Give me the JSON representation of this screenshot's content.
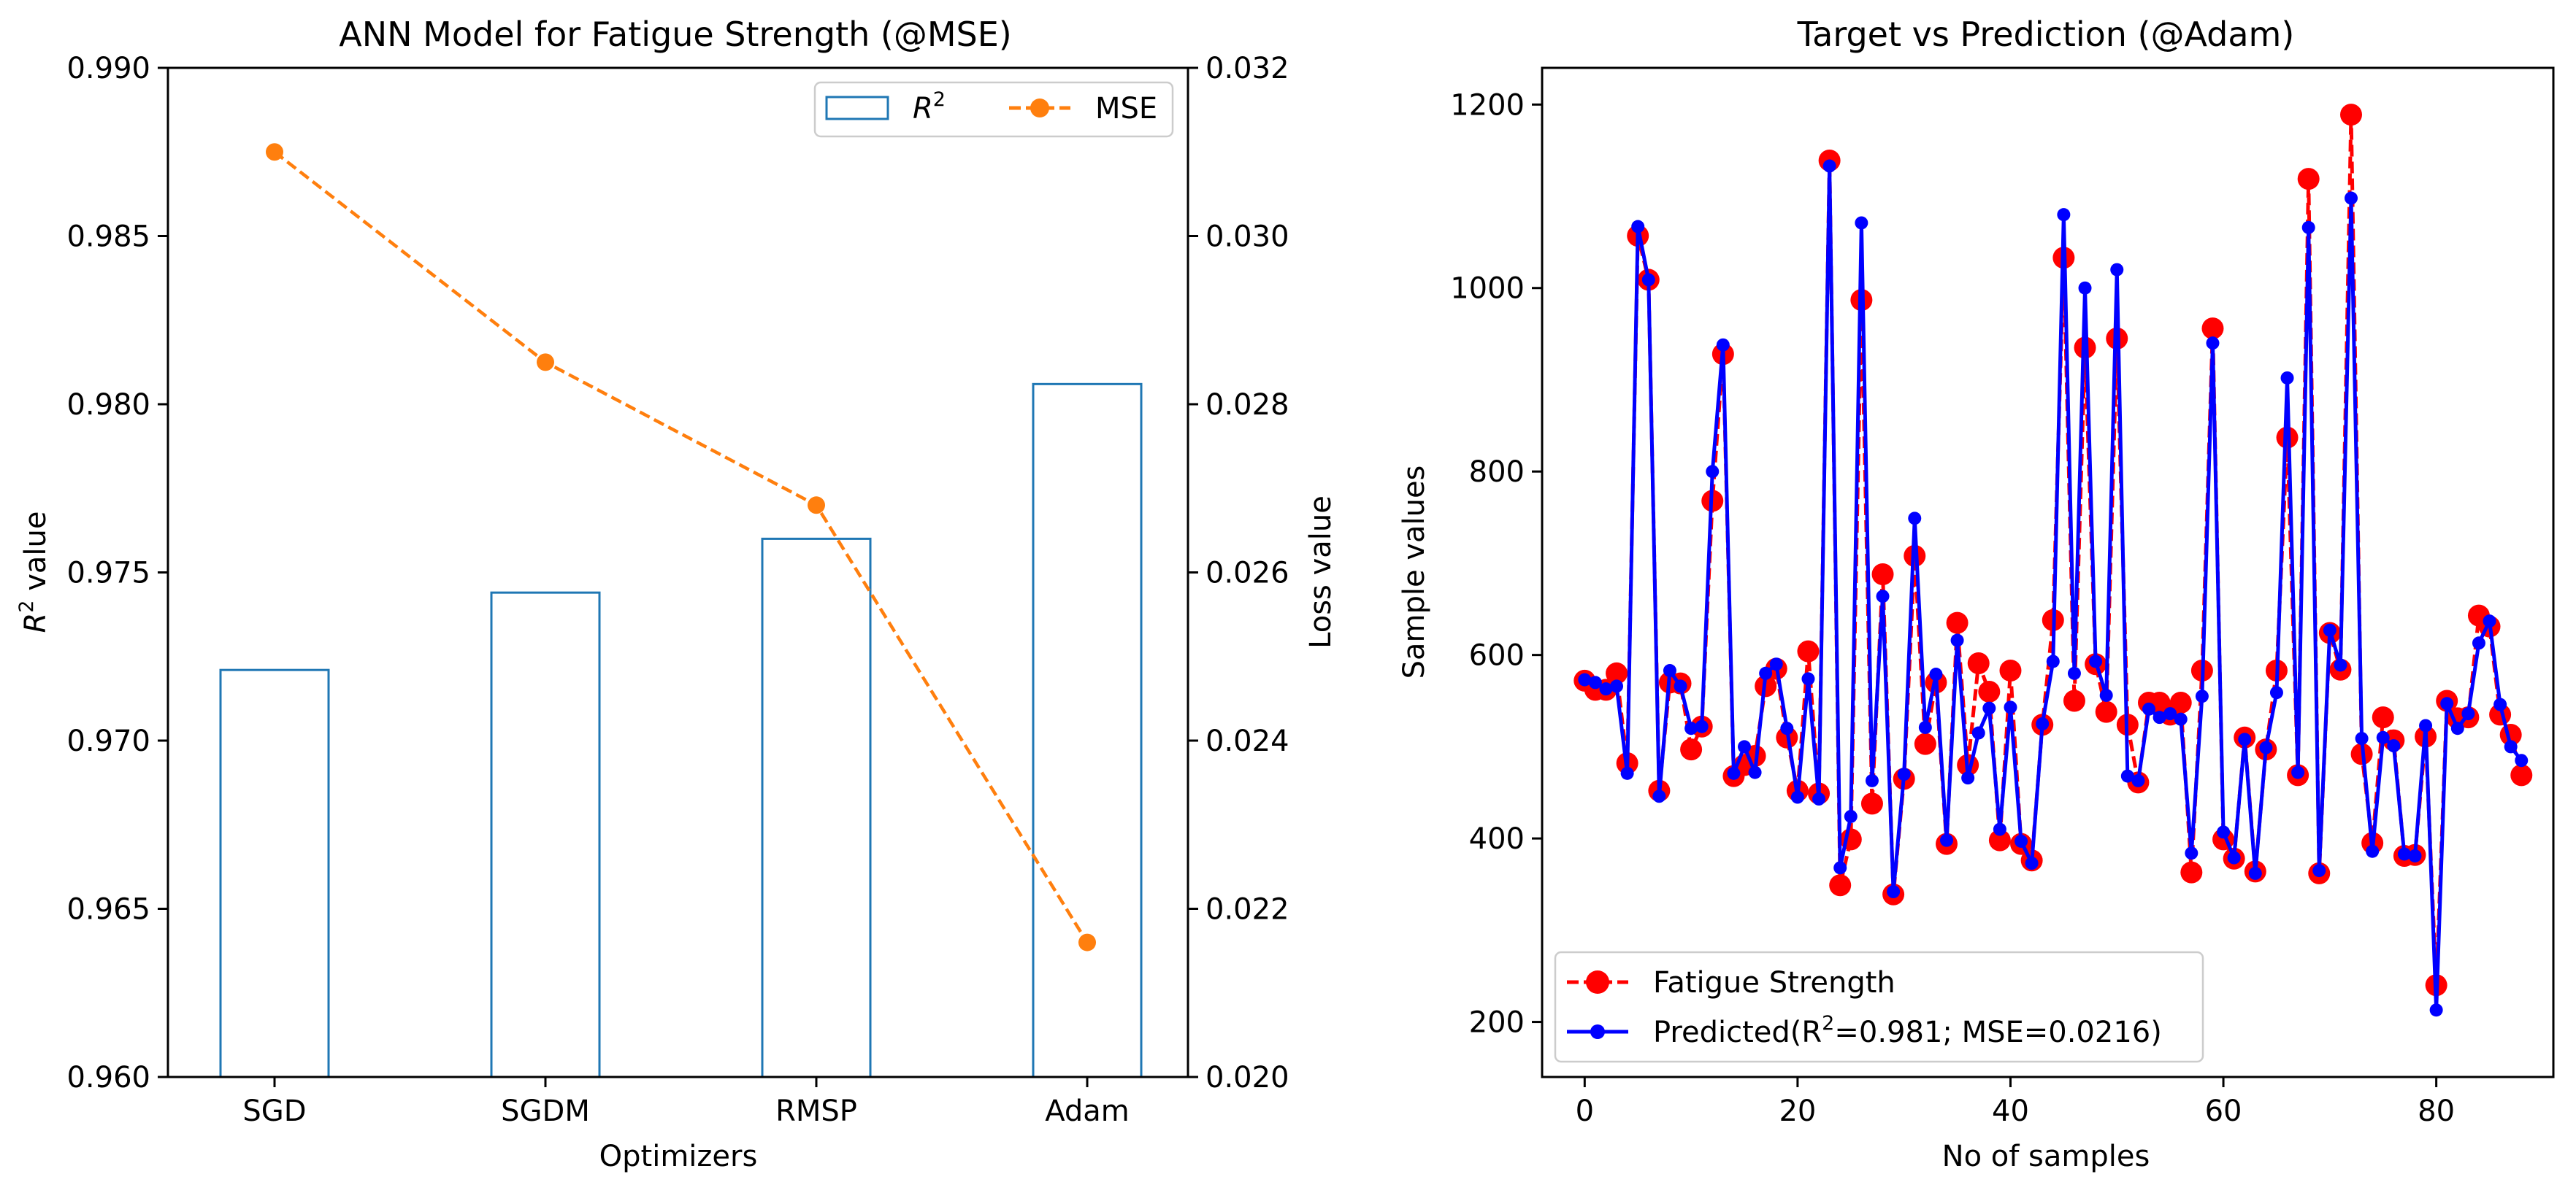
{
  "chart_data": [
    {
      "type": "bar",
      "title": "ANN Model for Fatigue Strength (@MSE)",
      "xlabel": "Optimizers",
      "ylabel": "R² value",
      "ylabel_main": "R",
      "ylabel_sup": "2",
      "ylabel_rest": " value",
      "y2label": "Loss value",
      "categories": [
        "SGD",
        "SGDM",
        "RMSP",
        "Adam"
      ],
      "ylim": [
        0.96,
        0.99
      ],
      "y2lim": [
        0.02,
        0.032
      ],
      "yticks": [
        "0.960",
        "0.965",
        "0.970",
        "0.975",
        "0.980",
        "0.985",
        "0.990"
      ],
      "y2ticks": [
        "0.020",
        "0.022",
        "0.024",
        "0.026",
        "0.028",
        "0.030",
        "0.032"
      ],
      "grid": false,
      "legend_position": "top-right",
      "series": [
        {
          "name": "R²",
          "legend_main": "R",
          "legend_sup": "2",
          "kind": "bar",
          "axis": "left",
          "color": "#1f77b4",
          "values": [
            0.9721,
            0.9744,
            0.976,
            0.9806
          ]
        },
        {
          "name": "MSE",
          "kind": "line",
          "axis": "right",
          "color": "#ff7f0e",
          "values": [
            0.031,
            0.0285,
            0.0268,
            0.0216
          ]
        }
      ]
    },
    {
      "type": "line",
      "title": "Target vs Prediction (@Adam)",
      "xlabel": "No of samples",
      "ylabel": "Sample values",
      "xlim": [
        -4,
        91
      ],
      "ylim": [
        140,
        1240
      ],
      "xticks": [
        0,
        20,
        40,
        60,
        80
      ],
      "yticks": [
        200,
        400,
        600,
        800,
        1000,
        1200
      ],
      "grid": false,
      "legend_position": "lower-left",
      "series": [
        {
          "name": "Fatigue Strength",
          "color": "#ff0000",
          "style": "dashed",
          "values": [
            572,
            562,
            562,
            580,
            482,
            1057,
            1009,
            452,
            570,
            569,
            497,
            522,
            768,
            928,
            468,
            480,
            490,
            566,
            585,
            510,
            452,
            604,
            449,
            1139,
            349,
            399,
            987,
            438,
            688,
            339,
            465,
            708,
            503,
            570,
            394,
            635,
            480,
            591,
            560,
            398,
            583,
            394,
            376,
            524,
            638,
            1033,
            550,
            935,
            590,
            538,
            945,
            524,
            461,
            548,
            548,
            535,
            548,
            363,
            583,
            956,
            399,
            378,
            510,
            364,
            497,
            583,
            837,
            469,
            1119,
            362,
            624,
            584,
            1189,
            492,
            395,
            532,
            507,
            381,
            382,
            511,
            240,
            550,
            531,
            532,
            643,
            631,
            535,
            513,
            469
          ]
        },
        {
          "name": "Predicted(R²=0.981; MSE=0.0216)",
          "legend_main": "Predicted(R",
          "legend_sup": "2",
          "legend_rest": "=0.981; MSE=0.0216)",
          "color": "#0000ff",
          "style": "solid",
          "values": [
            573,
            570,
            563,
            566,
            471,
            1067,
            1009,
            446,
            583,
            566,
            520,
            522,
            800,
            938,
            471,
            500,
            472,
            580,
            590,
            520,
            445,
            574,
            443,
            1133,
            368,
            424,
            1071,
            463,
            664,
            342,
            470,
            749,
            521,
            579,
            398,
            616,
            466,
            515,
            542,
            410,
            543,
            397,
            373,
            525,
            593,
            1080,
            580,
            1000,
            593,
            556,
            1020,
            468,
            463,
            541,
            532,
            536,
            530,
            384,
            555,
            940,
            407,
            379,
            508,
            362,
            499,
            559,
            902,
            472,
            1066,
            365,
            627,
            589,
            1098,
            509,
            386,
            510,
            501,
            383,
            381,
            523,
            213,
            547,
            520,
            536,
            613,
            637,
            546,
            500,
            485
          ]
        }
      ]
    }
  ]
}
